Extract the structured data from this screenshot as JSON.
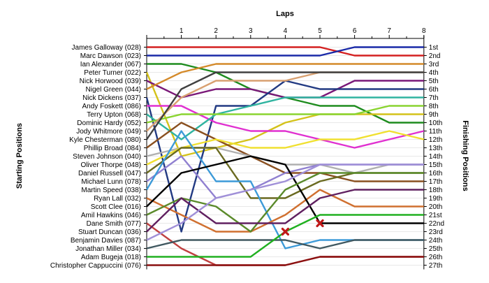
{
  "chart_data": {
    "type": "line",
    "title": "Laps",
    "ylabel_left": "Starting Positions",
    "ylabel_right": "Finishing Positions",
    "x_ticks": [
      1,
      2,
      3,
      4,
      5,
      6,
      7,
      8
    ],
    "xlim": [
      0,
      8
    ],
    "ylim": [
      1,
      27
    ],
    "grid": true,
    "finishing_labels": [
      "1st",
      "2nd",
      "3rd",
      "4th",
      "5th",
      "6th",
      "7th",
      "8th",
      "9th",
      "10th",
      "11th",
      "12th",
      "13th",
      "14th",
      "15th",
      "16th",
      "17th",
      "18th",
      "19th",
      "20th",
      "21st",
      "22nd",
      "23rd",
      "24th",
      "25th",
      "26th",
      "27th"
    ],
    "series": [
      {
        "name": "James Galloway (028)",
        "color": "#d42020",
        "positions": [
          1,
          1,
          1,
          1,
          1,
          1,
          2,
          2,
          2
        ]
      },
      {
        "name": "Marc Dawson (023)",
        "color": "#1a2aa8",
        "positions": [
          2,
          2,
          2,
          2,
          2,
          2,
          1,
          1,
          1
        ]
      },
      {
        "name": "Ian Alexander (067)",
        "color": "#1e8c1e",
        "positions": [
          3,
          3,
          4,
          6,
          7,
          8,
          8,
          10,
          10
        ]
      },
      {
        "name": "Peter Turner (022)",
        "color": "#d4c21a",
        "positions": [
          4,
          14,
          13,
          12,
          10,
          9,
          9,
          9,
          9
        ]
      },
      {
        "name": "Nick Horwood (039)",
        "color": "#7a1878",
        "positions": [
          5,
          7,
          6,
          6,
          7,
          7,
          5,
          5,
          5
        ]
      },
      {
        "name": "Nigel Green (044)",
        "color": "#d48a2a",
        "positions": [
          6,
          4,
          3,
          3,
          3,
          3,
          3,
          3,
          3
        ]
      },
      {
        "name": "Nick Dickens (037)",
        "color": "#223a82",
        "positions": [
          7,
          23,
          8,
          8,
          5,
          6,
          6,
          6,
          6
        ]
      },
      {
        "name": "Andy Foskett (086)",
        "color": "#e030d0",
        "positions": [
          8,
          8,
          10,
          11,
          11,
          12,
          13,
          12,
          11
        ]
      },
      {
        "name": "Terry Upton (068)",
        "color": "#30b4a0",
        "positions": [
          9,
          12,
          9,
          8,
          7,
          7,
          7,
          7,
          7
        ]
      },
      {
        "name": "Dominic Hardy (052)",
        "color": "#8ad430",
        "positions": [
          10,
          9,
          9,
          9,
          9,
          9,
          9,
          8,
          8
        ]
      },
      {
        "name": "Jody Whitmore (049)",
        "color": "#d8a070",
        "positions": [
          11,
          7,
          5,
          5,
          5,
          4,
          4,
          4,
          4
        ]
      },
      {
        "name": "Kyle Chesterman (080)",
        "color": "#404040",
        "positions": [
          12,
          6,
          4,
          4,
          4,
          4,
          4,
          4,
          4
        ]
      },
      {
        "name": "Phillip Broad (084)",
        "color": "#8a5020",
        "positions": [
          13,
          10,
          12,
          14,
          16,
          16,
          17,
          17,
          17
        ]
      },
      {
        "name": "Steven Johnson (040)",
        "color": "#b0b0b0",
        "positions": [
          14,
          13,
          13,
          14,
          15,
          15,
          16,
          15,
          15
        ]
      },
      {
        "name": "Oliver Thorpe (048)",
        "color": "#f0e030",
        "positions": [
          15,
          13,
          12,
          13,
          13,
          12,
          12,
          11,
          12
        ]
      },
      {
        "name": "Daniel Russell (047)",
        "color": "#6a6a20",
        "positions": [
          16,
          13,
          13,
          19,
          19,
          17,
          16,
          16,
          16
        ]
      },
      {
        "name": "Michael Lunn (078)",
        "color": "#9080d0",
        "positions": [
          17,
          14,
          19,
          18,
          16,
          15,
          15,
          15,
          15
        ]
      },
      {
        "name": "Martin Speed (038)",
        "color": "#3c9ad8",
        "positions": [
          18,
          11,
          17,
          17,
          25,
          24,
          24,
          24,
          24
        ]
      },
      {
        "name": "Ryan Lall (032)",
        "color": "#d07030",
        "positions": [
          19,
          21,
          23,
          23,
          21,
          18,
          20,
          20,
          20
        ]
      },
      {
        "name": "Scott Clee (016)",
        "color": "#000000",
        "positions": [
          20,
          16,
          15,
          14,
          15,
          22,
          22,
          22,
          22
        ]
      },
      {
        "name": "Amil Hawkins (046)",
        "color": "#5a8a2a",
        "positions": [
          21,
          19,
          20,
          23,
          18,
          16,
          16,
          16,
          16
        ]
      },
      {
        "name": "Dane Smith (077)",
        "color": "#c04040",
        "positions": [
          22,
          25,
          27,
          27,
          27,
          26,
          26,
          26,
          26
        ]
      },
      {
        "name": "Stuart Duncan (036)",
        "color": "#602060",
        "positions": [
          23,
          19,
          22,
          22,
          22,
          19,
          18,
          18,
          18
        ]
      },
      {
        "name": "Benjamin Davies (087)",
        "color": "#a090d8",
        "positions": [
          24,
          22,
          19,
          18,
          17,
          15,
          15,
          15,
          15
        ]
      },
      {
        "name": "Jonathan Miller (034)",
        "color": "#405860",
        "positions": [
          25,
          24,
          24,
          24,
          24,
          25,
          24,
          24,
          24
        ]
      },
      {
        "name": "Adam Bugeja (018)",
        "color": "#20b020",
        "positions": [
          26,
          26,
          26,
          26,
          23,
          21,
          21,
          21,
          21
        ]
      },
      {
        "name": "Christopher Cappuccini (076)",
        "color": "#8a1010",
        "positions": [
          27,
          27,
          27,
          27,
          27,
          26,
          26,
          26,
          26
        ]
      }
    ],
    "retired": [
      {
        "name": "Dane Smith (077)",
        "lap": 5,
        "position": 22
      },
      {
        "name": "Martin Speed (038)",
        "lap": 4,
        "position": 23
      }
    ]
  }
}
